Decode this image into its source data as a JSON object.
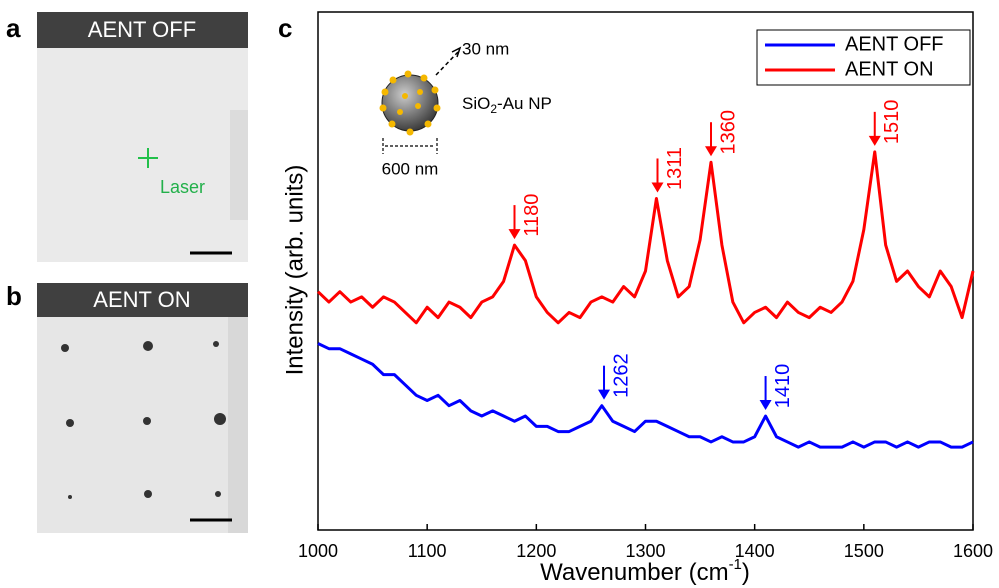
{
  "panels": {
    "a": {
      "letter": "a",
      "header": "AENT OFF",
      "laser": "Laser"
    },
    "b": {
      "letter": "b",
      "header": "AENT ON"
    }
  },
  "chart_data": {
    "type": "line",
    "letter": "c",
    "x_label": [
      "Wavenumber (cm",
      "-1",
      ")"
    ],
    "y_label": "Intensity (arb. units)",
    "inset": {
      "size_top": "30 nm",
      "particle_label": [
        "SiO",
        "2",
        "-Au NP"
      ],
      "size_bottom": "600 nm"
    },
    "xlim": [
      1000,
      1600
    ],
    "xticks": [
      1000,
      1100,
      1200,
      1300,
      1400,
      1500,
      1600
    ],
    "ylim": [
      0,
      100
    ],
    "legend": "top-right",
    "x": [
      1000,
      1010,
      1020,
      1030,
      1040,
      1050,
      1060,
      1070,
      1080,
      1090,
      1100,
      1110,
      1120,
      1130,
      1140,
      1150,
      1160,
      1170,
      1180,
      1190,
      1200,
      1210,
      1220,
      1230,
      1240,
      1250,
      1260,
      1270,
      1280,
      1290,
      1300,
      1310,
      1320,
      1330,
      1340,
      1350,
      1360,
      1370,
      1380,
      1390,
      1400,
      1410,
      1420,
      1430,
      1440,
      1450,
      1460,
      1470,
      1480,
      1490,
      1500,
      1510,
      1520,
      1530,
      1540,
      1550,
      1560,
      1570,
      1580,
      1590,
      1600
    ],
    "series": [
      {
        "name": "AENT OFF",
        "color": "#0000ff",
        "peaks": [
          1262,
          1410
        ],
        "values": [
          36,
          35,
          35,
          34,
          33,
          32,
          30,
          30,
          28,
          26,
          25,
          26,
          24,
          25,
          23,
          22,
          23,
          22,
          21,
          22,
          20,
          20,
          19,
          19,
          20,
          21,
          24,
          21,
          20,
          19,
          21,
          21,
          20,
          19,
          18,
          18,
          17,
          18,
          17,
          17,
          18,
          22,
          18,
          17,
          16,
          17,
          16,
          16,
          16,
          17,
          16,
          17,
          17,
          16,
          17,
          16,
          17,
          17,
          16,
          16,
          17
        ]
      },
      {
        "name": "AENT ON",
        "color": "#ff0000",
        "peaks": [
          1180,
          1311,
          1360,
          1510
        ],
        "values": [
          46,
          44,
          46,
          44,
          45,
          43,
          45,
          44,
          42,
          40,
          43,
          41,
          44,
          43,
          41,
          44,
          45,
          48,
          55,
          52,
          45,
          42,
          40,
          42,
          41,
          44,
          45,
          44,
          47,
          45,
          50,
          64,
          52,
          45,
          47,
          56,
          71,
          55,
          44,
          40,
          42,
          43,
          41,
          44,
          42,
          41,
          43,
          42,
          44,
          48,
          58,
          73,
          55,
          48,
          50,
          47,
          45,
          50,
          47,
          41,
          50
        ]
      }
    ]
  }
}
